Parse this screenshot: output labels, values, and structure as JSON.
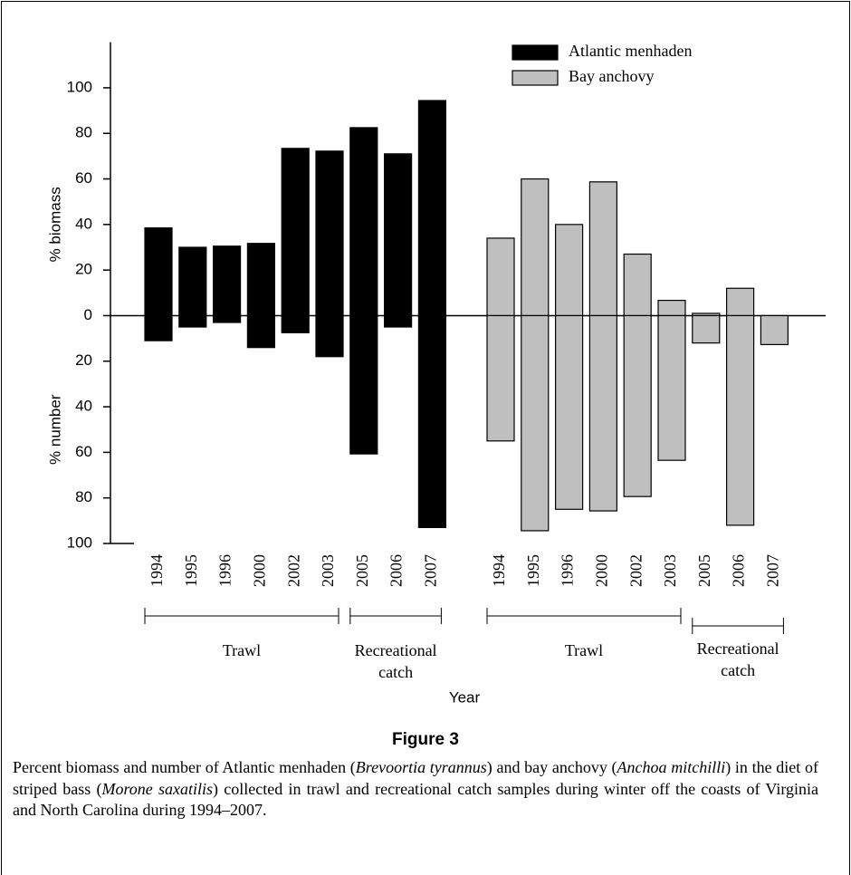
{
  "chart_data": {
    "type": "diverging-bar",
    "y_label_upper": "% biomass",
    "y_label_lower": "% number",
    "x_label": "Year",
    "categories": [
      "1994",
      "1995",
      "1996",
      "2000",
      "2002",
      "2003",
      "2005",
      "2006",
      "2007",
      null,
      "1994",
      "1995",
      "1996",
      "2000",
      "2002",
      "2003",
      "2005",
      "2006",
      "2007"
    ],
    "series": [
      {
        "name": "Atlantic menhaden",
        "color": "#000000",
        "biomass": [
          38.5,
          30,
          30.5,
          31.7,
          73.4,
          72.2,
          82.5,
          71,
          94.4,
          null,
          null,
          null,
          null,
          null,
          null,
          null,
          null,
          null,
          null
        ],
        "number": [
          -11,
          -5,
          -3,
          -14,
          -7.5,
          -18,
          -60.7,
          -5,
          -93,
          null,
          null,
          null,
          null,
          null,
          null,
          null,
          null,
          null,
          null
        ]
      },
      {
        "name": "Bay anchovy",
        "color": "#bfbfbf",
        "biomass": [
          null,
          null,
          null,
          null,
          null,
          null,
          null,
          null,
          null,
          null,
          34,
          60,
          40,
          58.7,
          27,
          6.7,
          1,
          12,
          0
        ],
        "number": [
          null,
          null,
          null,
          null,
          null,
          null,
          null,
          null,
          null,
          null,
          -55,
          -94.4,
          -85,
          -85.7,
          -79.4,
          -63.5,
          -12,
          -92,
          -12.7
        ]
      }
    ],
    "ylim": [
      -100,
      120
    ],
    "yticks": [
      {
        "value": -100,
        "label": "100"
      },
      {
        "value": -80,
        "label": "80"
      },
      {
        "value": -60,
        "label": "60"
      },
      {
        "value": -40,
        "label": "40"
      },
      {
        "value": -20,
        "label": "20"
      },
      0,
      20,
      40,
      60,
      80,
      100
    ],
    "legend": "upper right",
    "groups": [
      "Trawl",
      "Recreational catch",
      "Trawl",
      "Recreational catch"
    ]
  },
  "figure": {
    "label": "Figure 3",
    "caption": [
      {
        "text": "Percent biomass and number of Atlantic menhaden (",
        "italic": false
      },
      {
        "text": "Brevoortia tyrannus",
        "italic": true
      },
      {
        "text": ") and bay anchovy (",
        "italic": false
      },
      {
        "text": "Anchoa mitchilli",
        "italic": true
      },
      {
        "text": ") in the diet of striped bass (",
        "italic": false
      },
      {
        "text": "Morone saxatilis",
        "italic": true
      },
      {
        "text": ") collected in trawl and recreational catch samples during winter off the coasts of Virginia and North Carolina during 1994–2007.",
        "italic": false
      }
    ]
  }
}
